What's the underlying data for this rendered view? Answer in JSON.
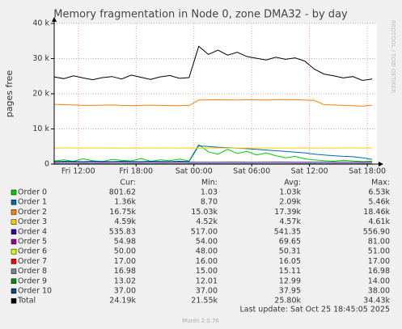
{
  "chart_data": {
    "type": "line",
    "title": "Memory fragmentation in Node 0, zone DMA32 - by day",
    "y_label": "pages free",
    "side_note": "RRDTOOL / TOBI OETIKER",
    "last_update": "Last update: Sat Oct 25 18:45:05 2025",
    "footer": "Munin 2.0.76",
    "grid": true,
    "ylim": [
      0,
      40000
    ],
    "yticks": [
      0,
      {
        "value": 10000,
        "label": "10 k"
      },
      {
        "value": 20000,
        "label": "20 k"
      },
      {
        "value": 30000,
        "label": "30 k"
      },
      {
        "value": 40000,
        "label": "40 k"
      }
    ],
    "xlim": [
      9.5,
      43
    ],
    "xticks": [
      {
        "value": 12,
        "label": "Fri 12:00"
      },
      {
        "value": 18,
        "label": "Fri 18:00"
      },
      {
        "value": 24,
        "label": "Sat 00:00"
      },
      {
        "value": 30,
        "label": "Sat 06:00"
      },
      {
        "value": 36,
        "label": "Sat 12:00"
      },
      {
        "value": 42,
        "label": "Sat 18:00"
      }
    ],
    "x": [
      9.5,
      10.5,
      11.5,
      12.5,
      13.5,
      14.5,
      15.5,
      16.5,
      17.5,
      18.5,
      19.5,
      20.5,
      21.5,
      22.5,
      23.5,
      24.5,
      25.5,
      26.5,
      27.5,
      28.5,
      29.5,
      30.5,
      31.5,
      32.5,
      33.5,
      34.5,
      35.5,
      36.5,
      37.5,
      38.5,
      39.5,
      40.5,
      41.5,
      42.5
    ],
    "stat_labels": [
      "Cur:",
      "Min:",
      "Avg:",
      "Max:"
    ],
    "series": [
      {
        "name": "Order 0",
        "color": "#00cc00",
        "stats": [
          "801.62",
          "1.03",
          "1.03k",
          "6.53k"
        ],
        "values": [
          900,
          1200,
          800,
          1500,
          1000,
          700,
          1300,
          1100,
          900,
          1600,
          800,
          1200,
          1000,
          1400,
          900,
          5500,
          3500,
          2800,
          4200,
          3000,
          3600,
          2600,
          3200,
          2400,
          1800,
          2200,
          1500,
          1200,
          1000,
          800,
          1100,
          900,
          700,
          802
        ]
      },
      {
        "name": "Order 1",
        "color": "#0066b3",
        "stats": [
          "1.36k",
          "8.70",
          "2.09k",
          "5.46k"
        ],
        "values": [
          700,
          800,
          750,
          700,
          800,
          750,
          700,
          800,
          750,
          700,
          800,
          750,
          700,
          800,
          750,
          5200,
          5000,
          4800,
          4700,
          4500,
          4400,
          4200,
          4000,
          3800,
          3600,
          3400,
          3200,
          2800,
          2600,
          2400,
          2200,
          2100,
          1800,
          1360
        ]
      },
      {
        "name": "Order 2",
        "color": "#ff8000",
        "stats": [
          "16.75k",
          "15.03k",
          "17.39k",
          "18.46k"
        ],
        "values": [
          17000,
          16900,
          16800,
          16700,
          16700,
          16750,
          16800,
          16700,
          16650,
          16700,
          16750,
          16700,
          16650,
          16600,
          16700,
          18200,
          18250,
          18300,
          18250,
          18200,
          18300,
          18250,
          18200,
          18300,
          18350,
          18300,
          18200,
          18100,
          16900,
          16800,
          16700,
          16600,
          16500,
          16750
        ]
      },
      {
        "name": "Order 3",
        "color": "#ffcc00",
        "stats": [
          "4.59k",
          "4.52k",
          "4.57k",
          "4.61k"
        ],
        "values": [
          4580,
          4600,
          4590,
          4570,
          4600,
          4580,
          4590,
          4560,
          4600,
          4570,
          4590,
          4580,
          4600,
          4570,
          4590,
          4560,
          4580,
          4570,
          4590,
          4560,
          4580,
          4570,
          4590,
          4560,
          4580,
          4570,
          4590,
          4560,
          4580,
          4570,
          4600,
          4590,
          4580,
          4590
        ]
      },
      {
        "name": "Order 4",
        "color": "#330099",
        "stats": [
          "535.83",
          "517.00",
          "541.35",
          "556.90"
        ],
        "values": [
          540,
          545,
          550,
          535,
          530,
          540,
          545,
          550,
          540,
          535,
          545,
          540,
          550,
          545,
          540,
          520,
          530,
          540,
          545,
          550,
          540,
          535,
          545,
          550,
          555,
          540,
          530,
          535,
          545,
          540,
          535,
          540,
          530,
          536
        ]
      },
      {
        "name": "Order 5",
        "color": "#990099",
        "stats": [
          "54.98",
          "54.00",
          "69.65",
          "81.00"
        ],
        "values": [
          80,
          78,
          76,
          75,
          74,
          72,
          71,
          70,
          72,
          74,
          76,
          78,
          80,
          79,
          77,
          60,
          62,
          64,
          66,
          68,
          70,
          72,
          74,
          76,
          75,
          73,
          70,
          65,
          62,
          60,
          58,
          56,
          55,
          55
        ]
      },
      {
        "name": "Order 6",
        "color": "#ccff00",
        "stats": [
          "50.00",
          "48.00",
          "50.31",
          "51.00"
        ],
        "values": [
          50,
          51,
          50,
          50,
          51,
          50,
          50,
          51,
          50,
          50,
          51,
          50,
          50,
          51,
          50,
          49,
          50,
          51,
          50,
          50,
          51,
          50,
          50,
          51,
          50,
          50,
          51,
          50,
          50,
          51,
          50,
          50,
          51,
          50
        ]
      },
      {
        "name": "Order 7",
        "color": "#ff0000",
        "stats": [
          "17.00",
          "16.00",
          "16.05",
          "17.00"
        ],
        "values": [
          16,
          16,
          16,
          16,
          16,
          16,
          16,
          16,
          16,
          16,
          16,
          16,
          16,
          16,
          16,
          16,
          16,
          16,
          16,
          16,
          16,
          16,
          16,
          16,
          16,
          16,
          16,
          16,
          16,
          16,
          16,
          16,
          17,
          17
        ]
      },
      {
        "name": "Order 8",
        "color": "#808080",
        "stats": [
          "16.98",
          "15.00",
          "15.11",
          "16.98"
        ],
        "values": [
          15,
          15,
          15,
          15,
          15,
          15,
          15,
          15,
          15,
          15,
          15,
          15,
          15,
          15,
          15,
          15,
          15,
          15,
          15,
          15,
          15,
          15,
          15,
          15,
          15,
          15,
          15,
          15,
          15,
          15,
          15,
          15,
          16,
          17
        ]
      },
      {
        "name": "Order 9",
        "color": "#008f00",
        "stats": [
          "13.02",
          "12.01",
          "12.99",
          "14.00"
        ],
        "values": [
          13,
          13,
          13,
          13,
          13,
          13,
          13,
          13,
          13,
          13,
          13,
          13,
          13,
          13,
          13,
          14,
          13,
          13,
          13,
          13,
          13,
          13,
          13,
          13,
          13,
          13,
          13,
          12,
          13,
          13,
          13,
          13,
          13,
          13
        ]
      },
      {
        "name": "Order 10",
        "color": "#00487d",
        "stats": [
          "37.00",
          "37.00",
          "37.95",
          "38.00"
        ],
        "values": [
          38,
          38,
          38,
          38,
          38,
          38,
          38,
          38,
          38,
          38,
          38,
          38,
          38,
          38,
          38,
          38,
          38,
          38,
          38,
          38,
          38,
          38,
          38,
          38,
          38,
          38,
          38,
          38,
          38,
          38,
          38,
          38,
          37,
          37
        ]
      },
      {
        "name": "Total",
        "color": "#000000",
        "stats": [
          "24.19k",
          "21.55k",
          "25.80k",
          "34.43k"
        ],
        "values": [
          24800,
          24300,
          25100,
          24500,
          24000,
          24600,
          24900,
          24200,
          25300,
          24700,
          24100,
          24800,
          25200,
          24400,
          24600,
          33500,
          31200,
          32400,
          31000,
          31800,
          30600,
          30100,
          29600,
          30400,
          29800,
          30200,
          29300,
          27000,
          25600,
          25100,
          24500,
          24900,
          23800,
          24190
        ]
      }
    ]
  }
}
